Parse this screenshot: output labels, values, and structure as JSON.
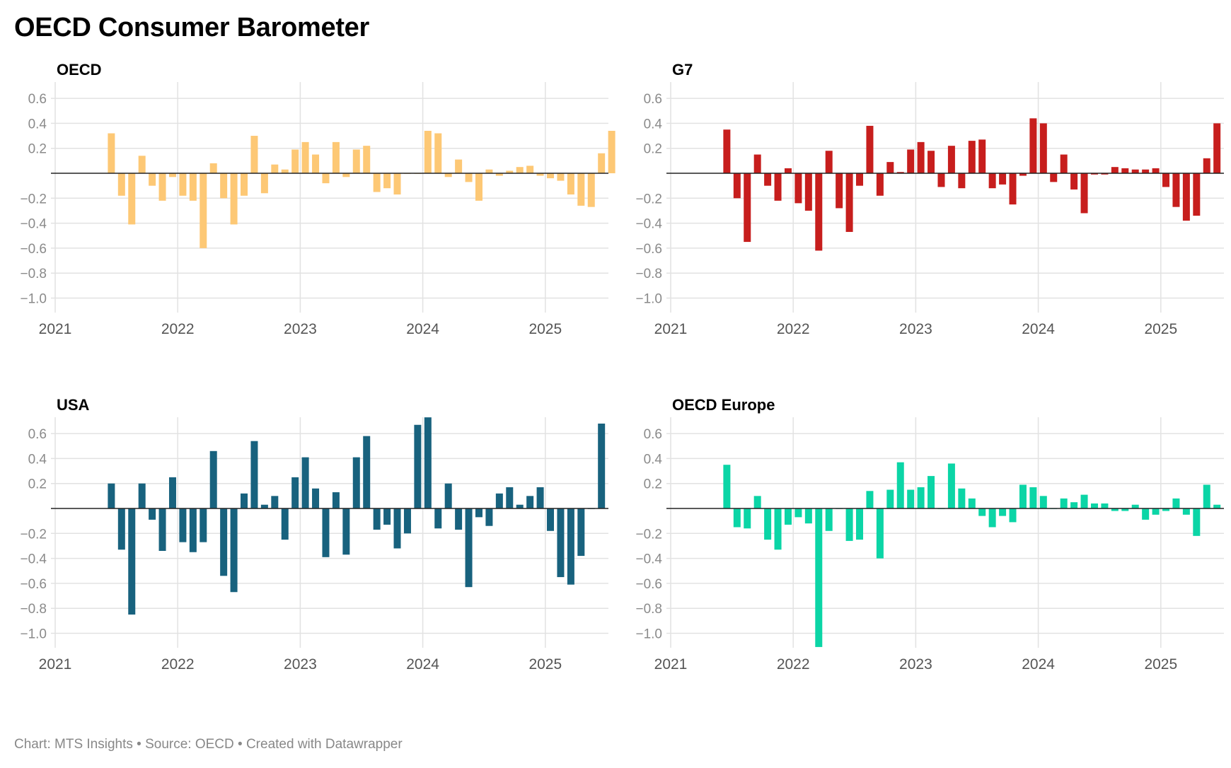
{
  "title": "OECD Consumer Barometer",
  "footer": "Chart: MTS Insights • Source: OECD • Created with Datawrapper",
  "colors": {
    "OECD": "#fdc875",
    "G7": "#c71e1d",
    "USA": "#18627e",
    "OECD Europe": "#0bd5a6",
    "grid": "#e2e2e2",
    "zero": "#222222"
  },
  "chart_data": [
    {
      "type": "bar",
      "title": "OECD",
      "x_ticks": [
        "2021",
        "2022",
        "2023",
        "2024",
        "2025"
      ],
      "y_ticks": [
        "0.6",
        "0.4",
        "0.2",
        "−0.2",
        "−0.4",
        "−0.6",
        "−0.8",
        "−1.0"
      ],
      "ylim": [
        -1.1,
        0.72
      ],
      "x_start": "2021-01",
      "first_bar": "2021-06",
      "values": [
        0.32,
        -0.18,
        -0.41,
        0.14,
        -0.1,
        -0.22,
        -0.03,
        -0.18,
        -0.22,
        -0.6,
        0.08,
        -0.2,
        -0.41,
        -0.18,
        0.3,
        -0.16,
        0.07,
        0.03,
        0.19,
        0.25,
        0.15,
        -0.08,
        0.25,
        -0.03,
        0.19,
        0.22,
        -0.15,
        -0.12,
        -0.17,
        0.0,
        0.0,
        0.34,
        0.32,
        -0.03,
        0.11,
        -0.07,
        -0.22,
        0.03,
        -0.02,
        0.02,
        0.05,
        0.06,
        -0.02,
        -0.04,
        -0.06,
        -0.17,
        -0.26,
        -0.27,
        0.16,
        0.34
      ]
    },
    {
      "type": "bar",
      "title": "G7",
      "x_ticks": [
        "2021",
        "2022",
        "2023",
        "2024",
        "2025"
      ],
      "y_ticks": [
        "0.6",
        "0.4",
        "0.2",
        "−0.2",
        "−0.4",
        "−0.6",
        "−0.8",
        "−1.0"
      ],
      "ylim": [
        -1.1,
        0.72
      ],
      "x_start": "2021-01",
      "first_bar": "2021-06",
      "values": [
        0.35,
        -0.2,
        -0.55,
        0.15,
        -0.1,
        -0.22,
        0.04,
        -0.24,
        -0.3,
        -0.62,
        0.18,
        -0.28,
        -0.47,
        -0.1,
        0.38,
        -0.18,
        0.09,
        0.01,
        0.19,
        0.25,
        0.18,
        -0.11,
        0.22,
        -0.12,
        0.26,
        0.27,
        -0.12,
        -0.09,
        -0.25,
        -0.02,
        0.44,
        0.4,
        -0.07,
        0.15,
        -0.13,
        -0.32,
        -0.01,
        -0.01,
        0.05,
        0.04,
        0.03,
        0.03,
        0.04,
        -0.11,
        -0.27,
        -0.38,
        -0.34,
        0.12,
        0.4
      ]
    },
    {
      "type": "bar",
      "title": "USA",
      "x_ticks": [
        "2021",
        "2022",
        "2023",
        "2024",
        "2025"
      ],
      "y_ticks": [
        "0.6",
        "0.4",
        "0.2",
        "−0.2",
        "−0.4",
        "−0.6",
        "−0.8",
        "−1.0"
      ],
      "ylim": [
        -1.1,
        0.72
      ],
      "x_start": "2021-01",
      "first_bar": "2021-06",
      "values": [
        0.2,
        -0.33,
        -0.85,
        0.2,
        -0.09,
        -0.34,
        0.25,
        -0.27,
        -0.35,
        -0.27,
        0.46,
        -0.54,
        -0.67,
        0.12,
        0.54,
        0.03,
        0.1,
        -0.25,
        0.25,
        0.41,
        0.16,
        -0.39,
        0.13,
        -0.37,
        0.41,
        0.58,
        -0.17,
        -0.13,
        -0.32,
        -0.2,
        0.67,
        0.73,
        -0.16,
        0.2,
        -0.17,
        -0.63,
        -0.07,
        -0.14,
        0.12,
        0.17,
        0.03,
        0.1,
        0.17,
        -0.18,
        -0.55,
        -0.61,
        -0.38,
        0.0,
        0.68
      ]
    },
    {
      "type": "bar",
      "title": "OECD Europe",
      "x_ticks": [
        "2021",
        "2022",
        "2023",
        "2024",
        "2025"
      ],
      "y_ticks": [
        "0.6",
        "0.4",
        "0.2",
        "−0.2",
        "−0.4",
        "−0.6",
        "−0.8",
        "−1.0"
      ],
      "ylim": [
        -1.1,
        0.72
      ],
      "x_start": "2021-01",
      "first_bar": "2021-06",
      "values": [
        0.35,
        -0.15,
        -0.16,
        0.1,
        -0.25,
        -0.33,
        -0.13,
        -0.07,
        -0.12,
        -1.11,
        -0.18,
        0.0,
        -0.26,
        -0.25,
        0.14,
        -0.4,
        0.15,
        0.37,
        0.15,
        0.17,
        0.26,
        0.0,
        0.36,
        0.16,
        0.08,
        -0.06,
        -0.15,
        -0.06,
        -0.11,
        0.19,
        0.17,
        0.1,
        0.0,
        0.08,
        0.05,
        0.11,
        0.04,
        0.04,
        -0.02,
        -0.02,
        0.03,
        -0.09,
        -0.05,
        -0.02,
        0.08,
        -0.05,
        -0.22,
        0.19,
        0.03
      ]
    }
  ]
}
